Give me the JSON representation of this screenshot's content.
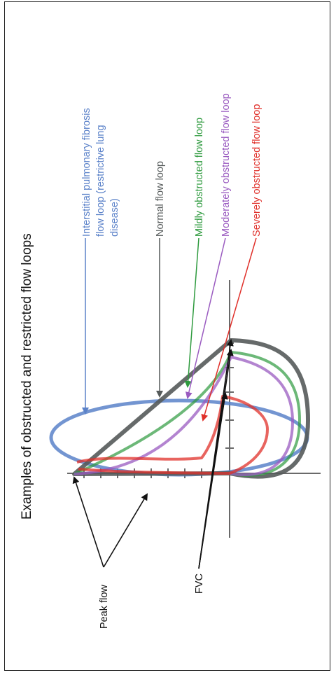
{
  "title": "Examples of obstructed and restricted flow loops",
  "labels": {
    "ipf_line1": "Interstitial pulmonary fibrosis",
    "ipf_line2": "flow loop (restrictive lung",
    "ipf_line3": "disease)",
    "normal": "Normal flow loop",
    "mild": "Mildly obstructed flow loop",
    "moderate": "Moderately obstructed flow loop",
    "severe": "Severely obstructed flow loop",
    "peak_flow": "Peak flow",
    "fvc": "FVC"
  },
  "colors": {
    "ipf": "#5b82c9",
    "normal": "#555a5a",
    "mild": "#2e9a3e",
    "moderate": "#9a5bc0",
    "severe": "#e0302a",
    "axis": "#6a6a6a",
    "annotation": "#111111"
  }
}
